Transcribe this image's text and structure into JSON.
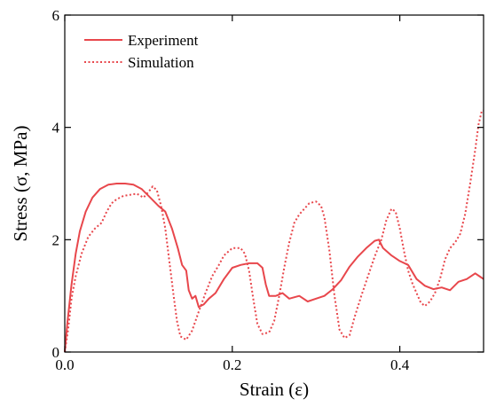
{
  "chart_data": {
    "type": "line",
    "title": "",
    "xlabel": "Strain (ε)",
    "ylabel": "Stress (σ, MPa)",
    "xlim": [
      0,
      0.5
    ],
    "ylim": [
      0,
      6
    ],
    "x_ticks": [
      0.0,
      0.2,
      0.4
    ],
    "x_tick_labels": [
      "0.0",
      "0.2",
      "0.4"
    ],
    "y_ticks": [
      0,
      2,
      4,
      6
    ],
    "y_tick_labels": [
      "0",
      "2",
      "4",
      "6"
    ],
    "grid": false,
    "legend": "top-left",
    "series": [
      {
        "name": "Experiment",
        "color": "#e8474c",
        "style": "solid",
        "points": [
          [
            0.0,
            0.0
          ],
          [
            0.003,
            0.5
          ],
          [
            0.008,
            1.2
          ],
          [
            0.013,
            1.75
          ],
          [
            0.018,
            2.15
          ],
          [
            0.025,
            2.5
          ],
          [
            0.033,
            2.75
          ],
          [
            0.042,
            2.9
          ],
          [
            0.052,
            2.98
          ],
          [
            0.062,
            3.0
          ],
          [
            0.072,
            3.0
          ],
          [
            0.082,
            2.98
          ],
          [
            0.092,
            2.9
          ],
          [
            0.102,
            2.75
          ],
          [
            0.112,
            2.6
          ],
          [
            0.12,
            2.5
          ],
          [
            0.128,
            2.2
          ],
          [
            0.135,
            1.85
          ],
          [
            0.14,
            1.55
          ],
          [
            0.145,
            1.45
          ],
          [
            0.148,
            1.1
          ],
          [
            0.152,
            0.95
          ],
          [
            0.156,
            1.0
          ],
          [
            0.16,
            0.8
          ],
          [
            0.166,
            0.85
          ],
          [
            0.172,
            0.95
          ],
          [
            0.18,
            1.05
          ],
          [
            0.19,
            1.3
          ],
          [
            0.2,
            1.5
          ],
          [
            0.21,
            1.55
          ],
          [
            0.22,
            1.58
          ],
          [
            0.23,
            1.58
          ],
          [
            0.236,
            1.5
          ],
          [
            0.24,
            1.2
          ],
          [
            0.244,
            1.0
          ],
          [
            0.252,
            1.0
          ],
          [
            0.26,
            1.05
          ],
          [
            0.268,
            0.95
          ],
          [
            0.28,
            1.0
          ],
          [
            0.29,
            0.9
          ],
          [
            0.3,
            0.95
          ],
          [
            0.31,
            1.0
          ],
          [
            0.32,
            1.12
          ],
          [
            0.33,
            1.28
          ],
          [
            0.34,
            1.52
          ],
          [
            0.35,
            1.7
          ],
          [
            0.36,
            1.85
          ],
          [
            0.37,
            1.98
          ],
          [
            0.375,
            2.0
          ],
          [
            0.38,
            1.85
          ],
          [
            0.39,
            1.72
          ],
          [
            0.4,
            1.62
          ],
          [
            0.41,
            1.55
          ],
          [
            0.42,
            1.3
          ],
          [
            0.43,
            1.18
          ],
          [
            0.44,
            1.12
          ],
          [
            0.45,
            1.15
          ],
          [
            0.46,
            1.1
          ],
          [
            0.47,
            1.25
          ],
          [
            0.48,
            1.3
          ],
          [
            0.49,
            1.4
          ],
          [
            0.495,
            1.35
          ],
          [
            0.5,
            1.3
          ]
        ]
      },
      {
        "name": "Simulation",
        "color": "#e8474c",
        "style": "dotted",
        "points": [
          [
            0.0,
            0.0
          ],
          [
            0.004,
            0.4
          ],
          [
            0.008,
            0.95
          ],
          [
            0.013,
            1.35
          ],
          [
            0.02,
            1.75
          ],
          [
            0.028,
            2.05
          ],
          [
            0.036,
            2.2
          ],
          [
            0.044,
            2.3
          ],
          [
            0.05,
            2.5
          ],
          [
            0.056,
            2.65
          ],
          [
            0.062,
            2.72
          ],
          [
            0.07,
            2.78
          ],
          [
            0.078,
            2.8
          ],
          [
            0.086,
            2.82
          ],
          [
            0.094,
            2.75
          ],
          [
            0.1,
            2.85
          ],
          [
            0.105,
            2.95
          ],
          [
            0.11,
            2.88
          ],
          [
            0.115,
            2.6
          ],
          [
            0.12,
            2.2
          ],
          [
            0.125,
            1.6
          ],
          [
            0.13,
            1.0
          ],
          [
            0.134,
            0.55
          ],
          [
            0.138,
            0.28
          ],
          [
            0.145,
            0.22
          ],
          [
            0.152,
            0.38
          ],
          [
            0.16,
            0.72
          ],
          [
            0.168,
            1.05
          ],
          [
            0.176,
            1.35
          ],
          [
            0.184,
            1.55
          ],
          [
            0.19,
            1.72
          ],
          [
            0.2,
            1.85
          ],
          [
            0.21,
            1.85
          ],
          [
            0.215,
            1.75
          ],
          [
            0.22,
            1.45
          ],
          [
            0.225,
            0.95
          ],
          [
            0.23,
            0.5
          ],
          [
            0.236,
            0.32
          ],
          [
            0.244,
            0.35
          ],
          [
            0.25,
            0.55
          ],
          [
            0.256,
            1.0
          ],
          [
            0.262,
            1.5
          ],
          [
            0.268,
            1.95
          ],
          [
            0.274,
            2.3
          ],
          [
            0.28,
            2.45
          ],
          [
            0.286,
            2.55
          ],
          [
            0.292,
            2.65
          ],
          [
            0.3,
            2.68
          ],
          [
            0.306,
            2.6
          ],
          [
            0.31,
            2.4
          ],
          [
            0.316,
            1.8
          ],
          [
            0.322,
            1.0
          ],
          [
            0.328,
            0.4
          ],
          [
            0.334,
            0.25
          ],
          [
            0.34,
            0.3
          ],
          [
            0.346,
            0.62
          ],
          [
            0.354,
            1.0
          ],
          [
            0.362,
            1.35
          ],
          [
            0.37,
            1.7
          ],
          [
            0.378,
            2.0
          ],
          [
            0.384,
            2.35
          ],
          [
            0.39,
            2.55
          ],
          [
            0.395,
            2.5
          ],
          [
            0.4,
            2.2
          ],
          [
            0.405,
            1.8
          ],
          [
            0.41,
            1.45
          ],
          [
            0.415,
            1.22
          ],
          [
            0.42,
            1.05
          ],
          [
            0.425,
            0.88
          ],
          [
            0.43,
            0.82
          ],
          [
            0.436,
            0.9
          ],
          [
            0.442,
            1.05
          ],
          [
            0.448,
            1.3
          ],
          [
            0.454,
            1.65
          ],
          [
            0.46,
            1.85
          ],
          [
            0.466,
            1.95
          ],
          [
            0.472,
            2.1
          ],
          [
            0.478,
            2.45
          ],
          [
            0.484,
            3.0
          ],
          [
            0.49,
            3.6
          ],
          [
            0.494,
            4.05
          ],
          [
            0.498,
            4.3
          ],
          [
            0.5,
            4.3
          ]
        ]
      }
    ]
  }
}
